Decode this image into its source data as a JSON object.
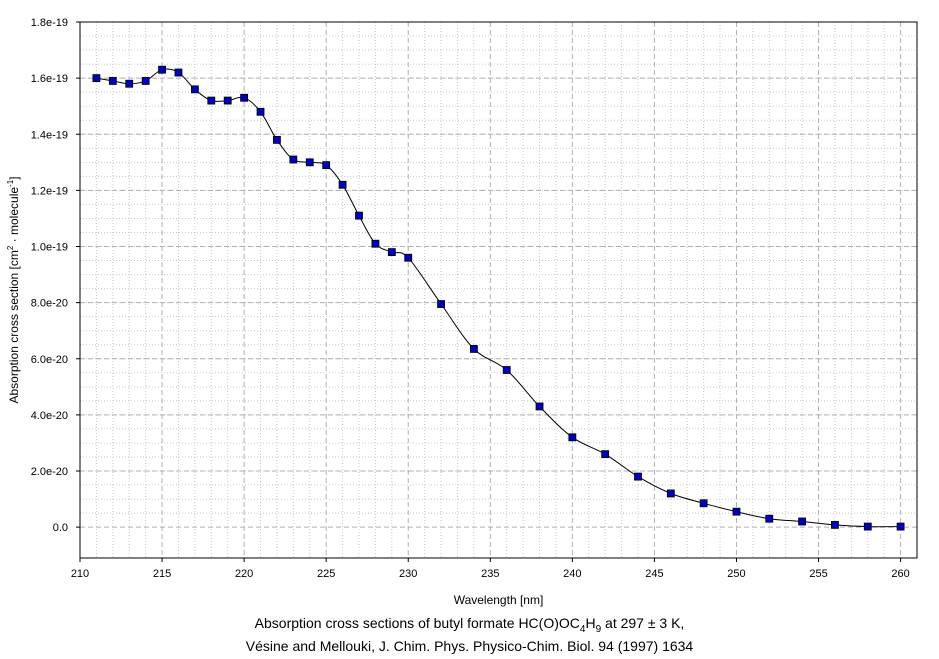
{
  "chart_data": {
    "type": "line",
    "xlabel": "Wavelength [nm]",
    "ylabel": {
      "pre": "Absorption cross section [cm",
      "sup1": "2",
      "mid": " · molecule",
      "sup2": "-1",
      "post": "]"
    },
    "xlim": [
      210,
      261
    ],
    "ylim": [
      -1.1e-20,
      1.8e-19
    ],
    "x_ticks": [
      210,
      215,
      220,
      225,
      230,
      235,
      240,
      245,
      250,
      255,
      260
    ],
    "y_ticks": [
      0,
      2e-20,
      4e-20,
      6e-20,
      8e-20,
      1e-19,
      1.2e-19,
      1.4e-19,
      1.6e-19,
      1.8e-19
    ],
    "y_tick_labels": [
      "0.0",
      "2.0e-20",
      "4.0e-20",
      "6.0e-20",
      "8.0e-20",
      "1.0e-19",
      "1.2e-19",
      "1.4e-19",
      "1.6e-19",
      "1.8e-19"
    ],
    "grid": true,
    "marker_color": "#0000c0",
    "line_color": "#000000",
    "series": [
      {
        "x": [
          211,
          212,
          213,
          214,
          215,
          216,
          217,
          218,
          219,
          220,
          221,
          222,
          223,
          224,
          225,
          226,
          227,
          228,
          229,
          230,
          232,
          234,
          236,
          238,
          240,
          242,
          244,
          246,
          248,
          250,
          252,
          254,
          256,
          258,
          260
        ],
        "y": [
          1.6e-19,
          1.59e-19,
          1.58e-19,
          1.59e-19,
          1.63e-19,
          1.62e-19,
          1.56e-19,
          1.52e-19,
          1.52e-19,
          1.53e-19,
          1.48e-19,
          1.38e-19,
          1.31e-19,
          1.3e-19,
          1.29e-19,
          1.22e-19,
          1.11e-19,
          1.01e-19,
          9.8e-20,
          9.6e-20,
          7.95e-20,
          6.35e-20,
          5.6e-20,
          4.3e-20,
          3.2e-20,
          2.6e-20,
          1.8e-20,
          1.2e-20,
          8.5e-21,
          5.5e-21,
          3e-21,
          2e-21,
          8e-22,
          2e-22,
          2e-22
        ]
      }
    ]
  },
  "caption": {
    "line1_pre": "Absorption cross sections of butyl formate HC(O)OC",
    "sub1": "4",
    "line1_mid": "H",
    "sub2": "9",
    "line1_post": " at 297 ± 3 K,",
    "line2": "Vésine and Mellouki, J. Chim. Phys. Physico-Chim. Biol. 94 (1997) 1634"
  }
}
